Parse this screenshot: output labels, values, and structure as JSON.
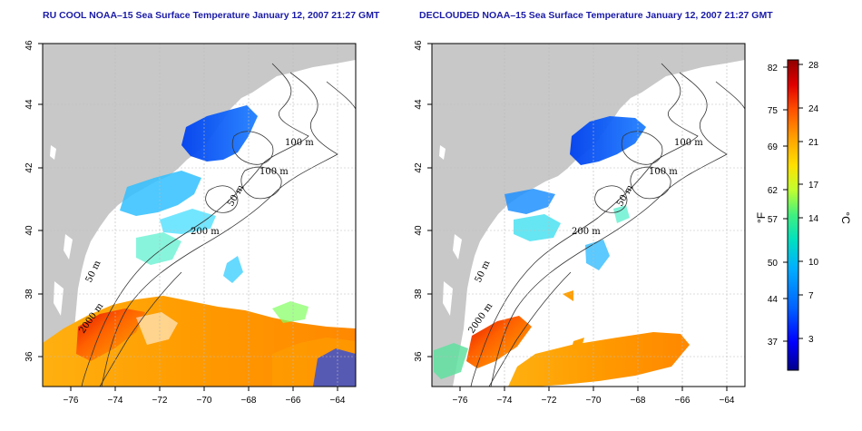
{
  "panels": [
    {
      "title": "RU COOL NOAA–15 Sea Surface Temperature January 12, 2007 21:27 GMT",
      "contour_labels": [
        "100 m",
        "100 m",
        "50 m",
        "200 m",
        "50 m",
        "2000 m"
      ]
    },
    {
      "title": "DECLOUDED NOAA–15 Sea Surface Temperature January 12, 2007 21:27 GMT",
      "contour_labels": [
        "100 m",
        "100 m",
        "50 m",
        "200 m",
        "50 m",
        "2000 m"
      ]
    }
  ],
  "axes": {
    "lon_ticks": [
      "−76",
      "−74",
      "−72",
      "−70",
      "−68",
      "−66",
      "−64"
    ],
    "lat_ticks": [
      "36",
      "38",
      "40",
      "42",
      "44",
      "46"
    ]
  },
  "colorbar": {
    "fahrenheit_ticks": [
      "82",
      "75",
      "69",
      "62",
      "57",
      "50",
      "44",
      "37"
    ],
    "celsius_ticks": [
      "28",
      "24",
      "21",
      "17",
      "14",
      "10",
      "7",
      "3"
    ],
    "fahrenheit_unit": "°F",
    "celsius_unit": "°C",
    "range_c": [
      0,
      28.5
    ]
  },
  "colors": {
    "land": "#c8c8c8",
    "title": "#1a1aa8",
    "scale": [
      "#00008c",
      "#0000ff",
      "#0060ff",
      "#00b0ff",
      "#00e0c0",
      "#40f080",
      "#c0ff30",
      "#ffe000",
      "#ffa000",
      "#ff5000",
      "#e00000",
      "#900000"
    ]
  }
}
